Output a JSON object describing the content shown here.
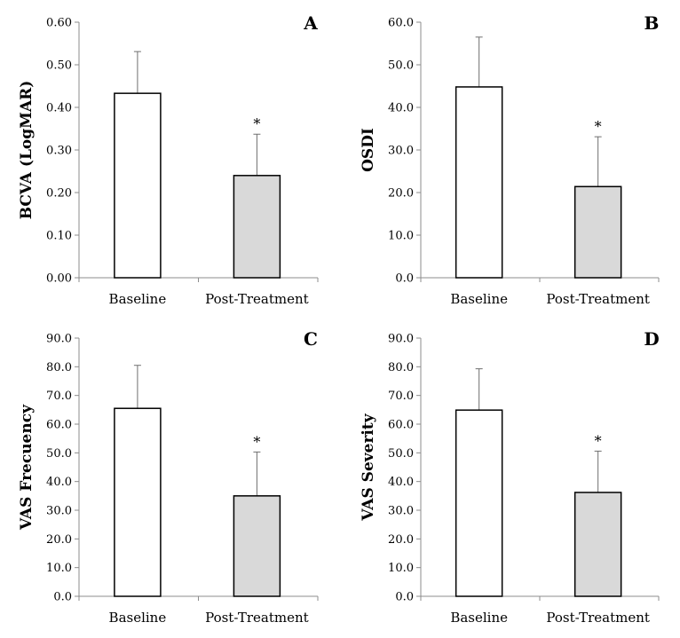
{
  "chart_data": [
    {
      "type": "bar",
      "panel_letter": "A",
      "ylabel": "BCVA (LogMAR)",
      "categories": [
        "Baseline",
        "Post-Treatment"
      ],
      "values": [
        0.433,
        0.24
      ],
      "error_upper": [
        0.531,
        0.337
      ],
      "significance": [
        "",
        "*"
      ],
      "ylim": [
        0,
        0.6
      ],
      "yticks": [
        "0.00",
        "0.10",
        "0.20",
        "0.30",
        "0.40",
        "0.50",
        "0.60"
      ],
      "bar_colors": [
        "#ffffff",
        "#d9d9d9"
      ]
    },
    {
      "type": "bar",
      "panel_letter": "B",
      "ylabel": "OSDI",
      "categories": [
        "Baseline",
        "Post-Treatment"
      ],
      "values": [
        44.8,
        21.4
      ],
      "error_upper": [
        56.5,
        33.1
      ],
      "significance": [
        "",
        "*"
      ],
      "ylim": [
        0,
        60
      ],
      "yticks": [
        "0.0",
        "10.0",
        "20.0",
        "30.0",
        "40.0",
        "50.0",
        "60.0"
      ],
      "bar_colors": [
        "#ffffff",
        "#d9d9d9"
      ]
    },
    {
      "type": "bar",
      "panel_letter": "C",
      "ylabel": "VAS Frecuency",
      "categories": [
        "Baseline",
        "Post-Treatment"
      ],
      "values": [
        65.5,
        35.0
      ],
      "error_upper": [
        80.5,
        50.3
      ],
      "significance": [
        "",
        "*"
      ],
      "ylim": [
        0,
        90
      ],
      "yticks": [
        "0.0",
        "10.0",
        "20.0",
        "30.0",
        "40.0",
        "50.0",
        "60.0",
        "70.0",
        "80.0",
        "90.0"
      ],
      "bar_colors": [
        "#ffffff",
        "#d9d9d9"
      ]
    },
    {
      "type": "bar",
      "panel_letter": "D",
      "ylabel": "VAS Severity",
      "categories": [
        "Baseline",
        "Post-Treatment"
      ],
      "values": [
        64.9,
        36.2
      ],
      "error_upper": [
        79.3,
        50.6
      ],
      "significance": [
        "",
        "*"
      ],
      "ylim": [
        0,
        90
      ],
      "yticks": [
        "0.0",
        "10.0",
        "20.0",
        "30.0",
        "40.0",
        "50.0",
        "60.0",
        "70.0",
        "80.0",
        "90.0"
      ],
      "bar_colors": [
        "#ffffff",
        "#d9d9d9"
      ]
    }
  ]
}
